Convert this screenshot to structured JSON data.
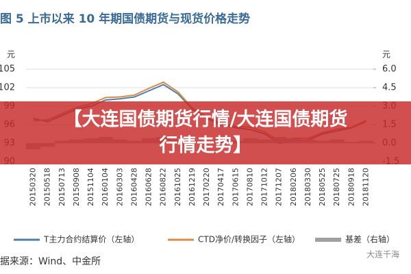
{
  "chart_data": {
    "type": "line",
    "title": "图 5  上市以来 10 年期国债期货与现货价格走势",
    "y_label": "元",
    "y2_label": "元",
    "categories": [
      "20150320",
      "20150518",
      "20150713",
      "20150908",
      "20151104",
      "20160104",
      "20160303",
      "20160428",
      "20160628",
      "20160822",
      "20161025",
      "20161219",
      "20170220",
      "20170417",
      "20170615",
      "20170810",
      "20171012",
      "20171207",
      "20180206",
      "20180330",
      "20180525",
      "20180725",
      "20180918",
      "20181120"
    ],
    "series": [
      {
        "name": "T主力合约结算价（左轴）",
        "color": "#4f7fa8",
        "values": [
          97.0,
          96.5,
          97.5,
          98.5,
          99.0,
          100.0,
          100.2,
          100.5,
          101.5,
          102.5,
          101.0,
          98.5,
          97.0,
          96.0,
          95.5,
          95.2,
          94.5,
          93.0,
          93.5,
          93.5,
          94.5,
          95.0,
          95.5,
          96.5
        ]
      },
      {
        "name": "CTD净价/转换因子（左轴）",
        "color": "#d98b4a",
        "values": [
          96.6,
          96.8,
          97.8,
          98.8,
          99.4,
          100.4,
          100.5,
          100.8,
          101.9,
          102.9,
          101.3,
          98.7,
          97.2,
          96.3,
          95.7,
          95.6,
          94.8,
          93.4,
          93.8,
          93.8,
          94.7,
          95.3,
          95.6,
          96.7
        ]
      },
      {
        "name": "基差（右轴）",
        "color": "#a0a0a0",
        "axis": "y2",
        "values": [
          -0.5,
          -0.3,
          0.2,
          0.3,
          0.4,
          0.5,
          0.3,
          0.2,
          0.4,
          0.5,
          0.3,
          0.2,
          0.1,
          0.3,
          0.2,
          0.4,
          0.3,
          0.5,
          0.4,
          0.3,
          0.2,
          0.3,
          0.1,
          0.2
        ]
      }
    ],
    "ylim": [
      90,
      105
    ],
    "yticks": [
      90,
      93,
      96,
      99,
      102,
      105
    ],
    "y2lim": [
      -1.5,
      6.0
    ],
    "y2ticks": [
      -1.5,
      {
        "value": 0,
        "label": "0.0"
      },
      1.5,
      {
        "value": 3,
        "label": "3.0"
      },
      4.5,
      {
        "value": 6,
        "label": "6.0"
      }
    ],
    "grid": true
  },
  "source": "据来源：Wind、中金所",
  "watermark": "大连千海",
  "banner": [
    "【大连国债期货行情/大连国债期货行情走势】"
  ]
}
